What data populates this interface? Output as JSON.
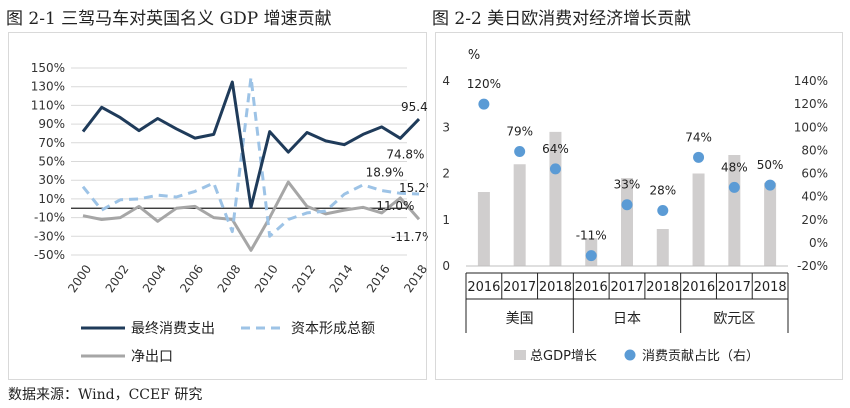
{
  "figure1": {
    "title": "图 2-1  三驾马车对英国名义 GDP 增速贡献"
  },
  "figure2": {
    "title": "图 2-2 美日欧消费对经济增长贡献"
  },
  "source": "数据来源：Wind，CCEF 研究",
  "colors": {
    "consumption": "#1f3b5a",
    "capital": "#9dc3e6",
    "netexport": "#a6a6a6",
    "bar": "#d0cece",
    "dot": "#5b9bd5"
  },
  "chart_data": [
    {
      "type": "line",
      "ylim": [
        -50,
        150
      ],
      "yticks": [
        "-50%",
        "-30%",
        "-10%",
        "10%",
        "30%",
        "50%",
        "70%",
        "90%",
        "110%",
        "130%",
        "150%"
      ],
      "xticks": [
        "2000",
        "2002",
        "2004",
        "2006",
        "2008",
        "2010",
        "2012",
        "2014",
        "2016",
        "2018"
      ],
      "x": [
        2000,
        2001,
        2002,
        2003,
        2004,
        2005,
        2006,
        2007,
        2008,
        2009,
        2010,
        2011,
        2012,
        2013,
        2014,
        2015,
        2016,
        2017,
        2018
      ],
      "grid": true,
      "legend_position": "bottom",
      "series": [
        {
          "name": "最终消费支出",
          "key": "consumption",
          "values": [
            82,
            108,
            97,
            83,
            96,
            85,
            75,
            79,
            135,
            1,
            82,
            60,
            81,
            72,
            68,
            79,
            87,
            74.8,
            95.4
          ]
        },
        {
          "name": "资本形成总额",
          "key": "capital",
          "values": [
            23,
            -2,
            9,
            10,
            14,
            12,
            18,
            27,
            -25,
            140,
            -30,
            -12,
            -5,
            -3,
            15,
            25,
            18.9,
            16,
            15.2
          ]
        },
        {
          "name": "净出口",
          "key": "netexport",
          "values": [
            -8,
            -12,
            -10,
            2,
            -14,
            0,
            2,
            -10,
            -12,
            -45,
            -10,
            28,
            2,
            -6,
            -2,
            1,
            -5,
            11.0,
            -11.7
          ]
        }
      ],
      "annotations": [
        {
          "text": "95.4%",
          "series": "consumption",
          "x": 2018
        },
        {
          "text": "74.8%",
          "series": "consumption",
          "x": 2017
        },
        {
          "text": "18.9%",
          "series": "capital",
          "x": 2016
        },
        {
          "text": "15.2%",
          "series": "capital",
          "x": 2018
        },
        {
          "text": "11.0%",
          "series": "netexport",
          "x": 2017
        },
        {
          "text": "-11.7%",
          "series": "netexport",
          "x": 2018
        }
      ]
    },
    {
      "type": "bar",
      "left_unit": "%",
      "ylim_left": [
        0,
        4
      ],
      "yticks_left": [
        "0",
        "1",
        "2",
        "3",
        "4"
      ],
      "ylim_right": [
        -20,
        140
      ],
      "yticks_right": [
        "-20%",
        "0%",
        "20%",
        "40%",
        "60%",
        "80%",
        "100%",
        "120%",
        "140%"
      ],
      "categories": [
        "2016",
        "2017",
        "2018",
        "2016",
        "2017",
        "2018",
        "2016",
        "2017",
        "2018"
      ],
      "groups": [
        {
          "label": "美国",
          "count": 3
        },
        {
          "label": "日本",
          "count": 3
        },
        {
          "label": "欧元区",
          "count": 3
        }
      ],
      "legend_position": "bottom",
      "series": [
        {
          "name": "总GDP增长",
          "type": "bar",
          "axis": "left",
          "values": [
            1.6,
            2.2,
            2.9,
            0.6,
            1.9,
            0.8,
            2.0,
            2.4,
            1.8
          ]
        },
        {
          "name": "消费贡献占比（右）",
          "type": "scatter",
          "axis": "right",
          "values": [
            120,
            79,
            64,
            -11,
            33,
            28,
            74,
            48,
            50
          ],
          "labels": [
            "120%",
            "79%",
            "64%",
            "-11%",
            "33%",
            "28%",
            "74%",
            "48%",
            "50%"
          ]
        }
      ]
    }
  ]
}
